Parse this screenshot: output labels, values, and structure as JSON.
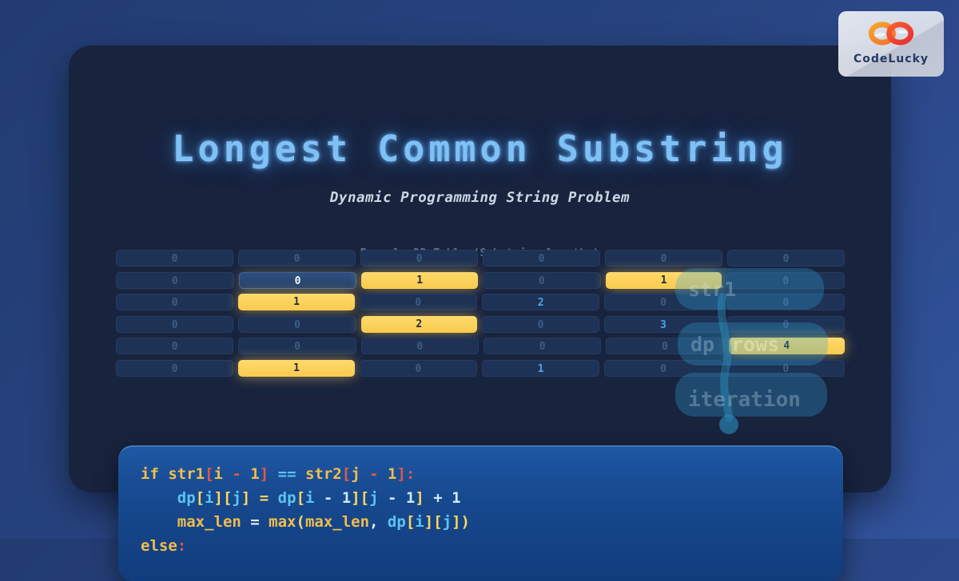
{
  "header": {
    "title": "Longest Common Substring",
    "subtitle": "Dynamic Programming String Problem",
    "table_caption": "Example DP Table (Substring lengths)"
  },
  "logo": {
    "brand": "CodeLucky"
  },
  "colors": {
    "match_yellow": "#fcd262",
    "value_blue": "#4aa3ec",
    "title_glow_blue": "#7fc0f5",
    "panel_navy": "#18233e",
    "code_block_blue": "#174a90",
    "ghost_teal": "rgba(50,165,220,0.30)"
  },
  "dp_table": {
    "rows": [
      [
        {
          "v": "0",
          "s": "dim"
        },
        {
          "v": "0",
          "s": "dim"
        },
        {
          "v": "0",
          "s": "dim"
        },
        {
          "v": "0",
          "s": "dim"
        },
        {
          "v": "0",
          "s": "dim"
        },
        {
          "v": "0",
          "s": "dim"
        }
      ],
      [
        {
          "v": "0",
          "s": "dim"
        },
        {
          "v": "0",
          "s": "cur"
        },
        {
          "v": "1",
          "s": "match"
        },
        {
          "v": "0",
          "s": "dim"
        },
        {
          "v": "1",
          "s": "match"
        },
        {
          "v": "0",
          "s": "dim"
        }
      ],
      [
        {
          "v": "0",
          "s": "dim"
        },
        {
          "v": "1",
          "s": "match"
        },
        {
          "v": "0",
          "s": "dim"
        },
        {
          "v": "2",
          "s": "val"
        },
        {
          "v": "0",
          "s": "dim"
        },
        {
          "v": "0",
          "s": "dim"
        }
      ],
      [
        {
          "v": "0",
          "s": "dim"
        },
        {
          "v": "0",
          "s": "dim"
        },
        {
          "v": "2",
          "s": "match"
        },
        {
          "v": "0",
          "s": "dim"
        },
        {
          "v": "3",
          "s": "val"
        },
        {
          "v": "0",
          "s": "dim"
        }
      ],
      [
        {
          "v": "0",
          "s": "dim"
        },
        {
          "v": "0",
          "s": "dim"
        },
        {
          "v": "0",
          "s": "dim"
        },
        {
          "v": "0",
          "s": "dim"
        },
        {
          "v": "0",
          "s": "dim"
        },
        {
          "v": "4",
          "s": "match"
        }
      ],
      [
        {
          "v": "0",
          "s": "dim"
        },
        {
          "v": "1",
          "s": "match"
        },
        {
          "v": "0",
          "s": "dim"
        },
        {
          "v": "1",
          "s": "val"
        },
        {
          "v": "0",
          "s": "dim"
        },
        {
          "v": "0",
          "s": "dim"
        }
      ]
    ]
  },
  "ghost_overlay": {
    "top_label": "str1",
    "mid_label_a": "dp",
    "mid_label_b": "rows",
    "bottom_label": "iteration"
  },
  "code": {
    "lines": [
      {
        "tokens": [
          {
            "t": "if str1",
            "c": "gold"
          },
          {
            "t": "[",
            "c": "red"
          },
          {
            "t": "i ",
            "c": "gold"
          },
          {
            "t": "- ",
            "c": "red"
          },
          {
            "t": "1",
            "c": "gold"
          },
          {
            "t": "] ",
            "c": "red"
          },
          {
            "t": "== ",
            "c": "cyan"
          },
          {
            "t": "str2",
            "c": "gold"
          },
          {
            "t": "[",
            "c": "red"
          },
          {
            "t": "j ",
            "c": "gold"
          },
          {
            "t": "- ",
            "c": "red"
          },
          {
            "t": "1",
            "c": "gold"
          },
          {
            "t": "]:",
            "c": "red"
          }
        ]
      },
      {
        "tokens": [
          {
            "t": "    dp",
            "c": "cyan"
          },
          {
            "t": "[",
            "c": "yellow"
          },
          {
            "t": "i",
            "c": "cyan"
          },
          {
            "t": "][",
            "c": "yellow"
          },
          {
            "t": "j",
            "c": "cyan"
          },
          {
            "t": "] ",
            "c": "yellow"
          },
          {
            "t": "= ",
            "c": "yellow"
          },
          {
            "t": "dp",
            "c": "cyan"
          },
          {
            "t": "[",
            "c": "yellow"
          },
          {
            "t": "i ",
            "c": "cyan"
          },
          {
            "t": "- 1",
            "c": "ice"
          },
          {
            "t": "][",
            "c": "yellow"
          },
          {
            "t": "j ",
            "c": "cyan"
          },
          {
            "t": "- 1",
            "c": "ice"
          },
          {
            "t": "] ",
            "c": "yellow"
          },
          {
            "t": "+ 1",
            "c": "ice"
          }
        ]
      },
      {
        "tokens": [
          {
            "t": "    max_len ",
            "c": "gold"
          },
          {
            "t": "= ",
            "c": "white"
          },
          {
            "t": "max",
            "c": "gold"
          },
          {
            "t": "(",
            "c": "yellow"
          },
          {
            "t": "max_len",
            "c": "gold"
          },
          {
            "t": ", ",
            "c": "white"
          },
          {
            "t": "dp",
            "c": "cyan"
          },
          {
            "t": "[",
            "c": "yellow"
          },
          {
            "t": "i",
            "c": "cyan"
          },
          {
            "t": "][",
            "c": "yellow"
          },
          {
            "t": "j",
            "c": "cyan"
          },
          {
            "t": "]",
            "c": "yellow"
          },
          {
            "t": ")",
            "c": "yellow"
          }
        ]
      },
      {
        "tokens": [
          {
            "t": "else",
            "c": "gold"
          },
          {
            "t": ":",
            "c": "red"
          }
        ]
      }
    ]
  }
}
